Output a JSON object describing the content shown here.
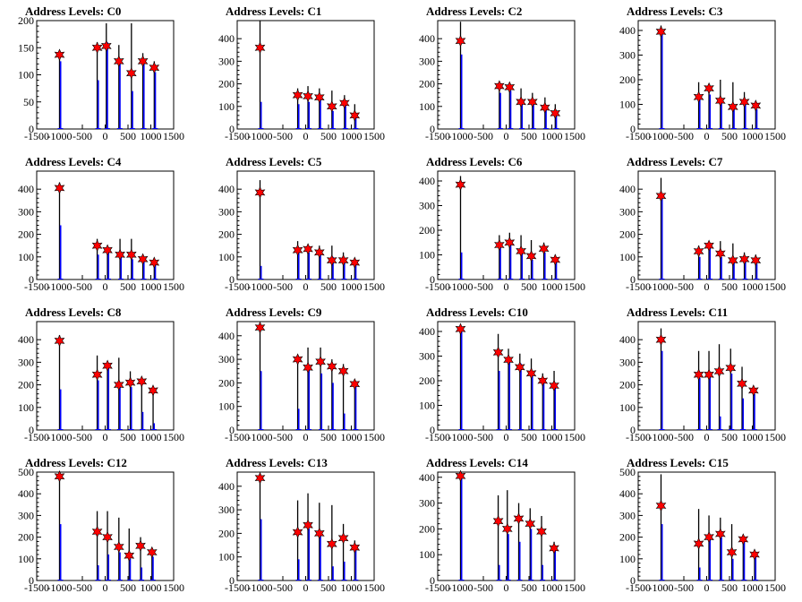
{
  "title_prefix": "Address Levels: ",
  "colors": {
    "histogram_black": "#000000",
    "histogram_blue": "#0000ff",
    "marker": "#ff0000",
    "marker_outline": "#000000"
  },
  "x_axis": {
    "range": [
      -1500,
      1500
    ],
    "tick_labels": [
      "-1500",
      "-1000",
      "-500",
      "0",
      "500",
      "1000",
      "1500"
    ]
  },
  "chart_data": [
    {
      "name": "C0",
      "type": "bar",
      "x": [
        -1000,
        -175,
        25,
        300,
        575,
        825,
        1075
      ],
      "peaks_black": [
        140,
        160,
        195,
        155,
        195,
        140,
        125
      ],
      "peaks_blue": [
        125,
        90,
        160,
        120,
        70,
        125,
        105
      ],
      "markers": [
        137,
        150,
        153,
        125,
        103,
        125,
        113
      ],
      "ylim": [
        0,
        200
      ],
      "yticks": [
        0,
        50,
        100,
        150,
        200
      ]
    },
    {
      "name": "C1",
      "type": "bar",
      "x": [
        -1000,
        -175,
        50,
        300,
        575,
        850,
        1075
      ],
      "peaks_black": [
        480,
        180,
        190,
        180,
        170,
        150,
        110
      ],
      "peaks_blue": [
        120,
        110,
        120,
        140,
        80,
        110,
        60
      ],
      "markers": [
        360,
        150,
        145,
        140,
        100,
        115,
        60
      ],
      "ylim": [
        0,
        480
      ],
      "yticks": [
        0,
        100,
        200,
        300,
        400
      ]
    },
    {
      "name": "C2",
      "type": "bar",
      "x": [
        -1000,
        -150,
        75,
        325,
        575,
        850,
        1075
      ],
      "peaks_black": [
        475,
        200,
        200,
        180,
        160,
        140,
        110
      ],
      "peaks_blue": [
        330,
        160,
        170,
        110,
        120,
        90,
        60
      ],
      "markers": [
        390,
        190,
        185,
        120,
        120,
        95,
        70
      ],
      "ylim": [
        0,
        480
      ],
      "yticks": [
        0,
        100,
        200,
        300,
        400
      ]
    },
    {
      "name": "C3",
      "type": "bar",
      "x": [
        -1000,
        -175,
        50,
        300,
        575,
        825,
        1075
      ],
      "peaks_black": [
        420,
        190,
        175,
        200,
        190,
        150,
        110
      ],
      "peaks_blue": [
        400,
        130,
        140,
        120,
        100,
        100,
        80
      ],
      "markers": [
        395,
        130,
        165,
        115,
        90,
        110,
        95
      ],
      "ylim": [
        0,
        440
      ],
      "yticks": [
        0,
        100,
        200,
        300,
        400
      ]
    },
    {
      "name": "C4",
      "type": "bar",
      "x": [
        -1000,
        -175,
        50,
        325,
        575,
        825,
        1075
      ],
      "peaks_black": [
        430,
        180,
        150,
        180,
        180,
        110,
        80
      ],
      "peaks_blue": [
        240,
        110,
        120,
        100,
        90,
        80,
        75
      ],
      "markers": [
        405,
        150,
        130,
        110,
        110,
        90,
        75
      ],
      "ylim": [
        0,
        480
      ],
      "yticks": [
        0,
        100,
        200,
        300,
        400
      ]
    },
    {
      "name": "C5",
      "type": "bar",
      "x": [
        -1000,
        -175,
        50,
        300,
        575,
        825,
        1075
      ],
      "peaks_black": [
        440,
        170,
        150,
        150,
        150,
        120,
        90
      ],
      "peaks_blue": [
        60,
        120,
        120,
        110,
        100,
        90,
        70
      ],
      "markers": [
        385,
        130,
        135,
        120,
        85,
        85,
        75
      ],
      "ylim": [
        0,
        480
      ],
      "yticks": [
        0,
        100,
        200,
        300,
        400
      ]
    },
    {
      "name": "C6",
      "type": "bar",
      "x": [
        -1000,
        -150,
        75,
        325,
        550,
        825,
        1075
      ],
      "peaks_black": [
        420,
        180,
        190,
        180,
        160,
        150,
        100
      ],
      "peaks_blue": [
        110,
        150,
        160,
        110,
        80,
        110,
        70
      ],
      "markers": [
        385,
        140,
        150,
        115,
        95,
        125,
        80
      ],
      "ylim": [
        0,
        440
      ],
      "yticks": [
        0,
        100,
        200,
        300,
        400
      ]
    },
    {
      "name": "C7",
      "type": "bar",
      "x": [
        -1000,
        -175,
        50,
        300,
        575,
        825,
        1075
      ],
      "peaks_black": [
        450,
        150,
        160,
        170,
        160,
        120,
        110
      ],
      "peaks_blue": [
        370,
        100,
        140,
        100,
        80,
        90,
        70
      ],
      "markers": [
        370,
        125,
        150,
        115,
        85,
        90,
        85
      ],
      "ylim": [
        0,
        480
      ],
      "yticks": [
        0,
        100,
        200,
        300,
        400
      ]
    },
    {
      "name": "C8",
      "type": "bar",
      "x": [
        -1000,
        -175,
        50,
        300,
        550,
        800,
        1050
      ],
      "peaks_black": [
        420,
        330,
        300,
        320,
        260,
        220,
        180
      ],
      "peaks_blue": [
        180,
        220,
        280,
        200,
        190,
        80,
        30
      ],
      "markers": [
        395,
        245,
        285,
        200,
        210,
        215,
        175
      ],
      "ylim": [
        0,
        480
      ],
      "yticks": [
        0,
        100,
        200,
        300,
        400
      ]
    },
    {
      "name": "C9",
      "type": "bar",
      "x": [
        -1000,
        -175,
        50,
        325,
        575,
        825,
        1075
      ],
      "peaks_black": [
        440,
        300,
        350,
        350,
        300,
        280,
        200
      ],
      "peaks_blue": [
        250,
        90,
        260,
        240,
        200,
        70,
        200
      ],
      "markers": [
        435,
        300,
        265,
        290,
        270,
        250,
        195
      ],
      "ylim": [
        0,
        460
      ],
      "yticks": [
        0,
        100,
        200,
        300,
        400
      ]
    },
    {
      "name": "C10",
      "type": "bar",
      "x": [
        -1000,
        -175,
        50,
        300,
        550,
        800,
        1050
      ],
      "peaks_black": [
        420,
        390,
        330,
        310,
        290,
        230,
        240
      ],
      "peaks_blue": [
        400,
        240,
        280,
        270,
        230,
        200,
        180
      ],
      "markers": [
        410,
        315,
        285,
        255,
        230,
        200,
        180
      ],
      "ylim": [
        0,
        440
      ],
      "yticks": [
        0,
        100,
        200,
        300,
        400
      ]
    },
    {
      "name": "C11",
      "type": "bar",
      "x": [
        -1000,
        -175,
        50,
        275,
        525,
        775,
        1025
      ],
      "peaks_black": [
        450,
        350,
        350,
        380,
        360,
        280,
        180
      ],
      "peaks_blue": [
        350,
        230,
        240,
        60,
        250,
        140,
        160
      ],
      "markers": [
        400,
        245,
        245,
        260,
        275,
        205,
        175
      ],
      "ylim": [
        0,
        480
      ],
      "yticks": [
        0,
        100,
        200,
        300,
        400
      ]
    },
    {
      "name": "C12",
      "type": "bar",
      "x": [
        -1000,
        -175,
        50,
        300,
        525,
        775,
        1025
      ],
      "peaks_black": [
        500,
        320,
        320,
        290,
        240,
        200,
        150
      ],
      "peaks_blue": [
        260,
        70,
        120,
        130,
        100,
        60,
        110
      ],
      "markers": [
        480,
        225,
        200,
        155,
        115,
        160,
        130
      ],
      "ylim": [
        0,
        500
      ],
      "yticks": [
        0,
        100,
        200,
        300,
        400,
        500
      ]
    },
    {
      "name": "C13",
      "type": "bar",
      "x": [
        -1000,
        -175,
        50,
        300,
        575,
        825,
        1075
      ],
      "peaks_black": [
        450,
        340,
        370,
        330,
        320,
        240,
        170
      ],
      "peaks_blue": [
        260,
        90,
        220,
        190,
        60,
        80,
        150
      ],
      "markers": [
        435,
        205,
        235,
        200,
        155,
        180,
        140
      ],
      "ylim": [
        0,
        460
      ],
      "yticks": [
        0,
        100,
        200,
        300,
        400
      ]
    },
    {
      "name": "C14",
      "type": "bar",
      "x": [
        -1000,
        -175,
        25,
        275,
        525,
        775,
        1050
      ],
      "peaks_black": [
        420,
        330,
        350,
        300,
        280,
        250,
        150
      ],
      "peaks_blue": [
        400,
        60,
        180,
        150,
        200,
        60,
        120
      ],
      "markers": [
        405,
        230,
        200,
        240,
        220,
        190,
        125
      ],
      "ylim": [
        0,
        420
      ],
      "yticks": [
        0,
        100,
        200,
        300,
        400
      ]
    },
    {
      "name": "C15",
      "type": "bar",
      "x": [
        -1000,
        -175,
        50,
        300,
        550,
        800,
        1050
      ],
      "peaks_black": [
        490,
        330,
        300,
        290,
        260,
        200,
        140
      ],
      "peaks_blue": [
        260,
        60,
        210,
        200,
        100,
        180,
        110
      ],
      "markers": [
        345,
        170,
        200,
        215,
        130,
        190,
        120
      ],
      "ylim": [
        0,
        500
      ],
      "yticks": [
        0,
        100,
        200,
        300,
        400,
        500
      ]
    }
  ]
}
